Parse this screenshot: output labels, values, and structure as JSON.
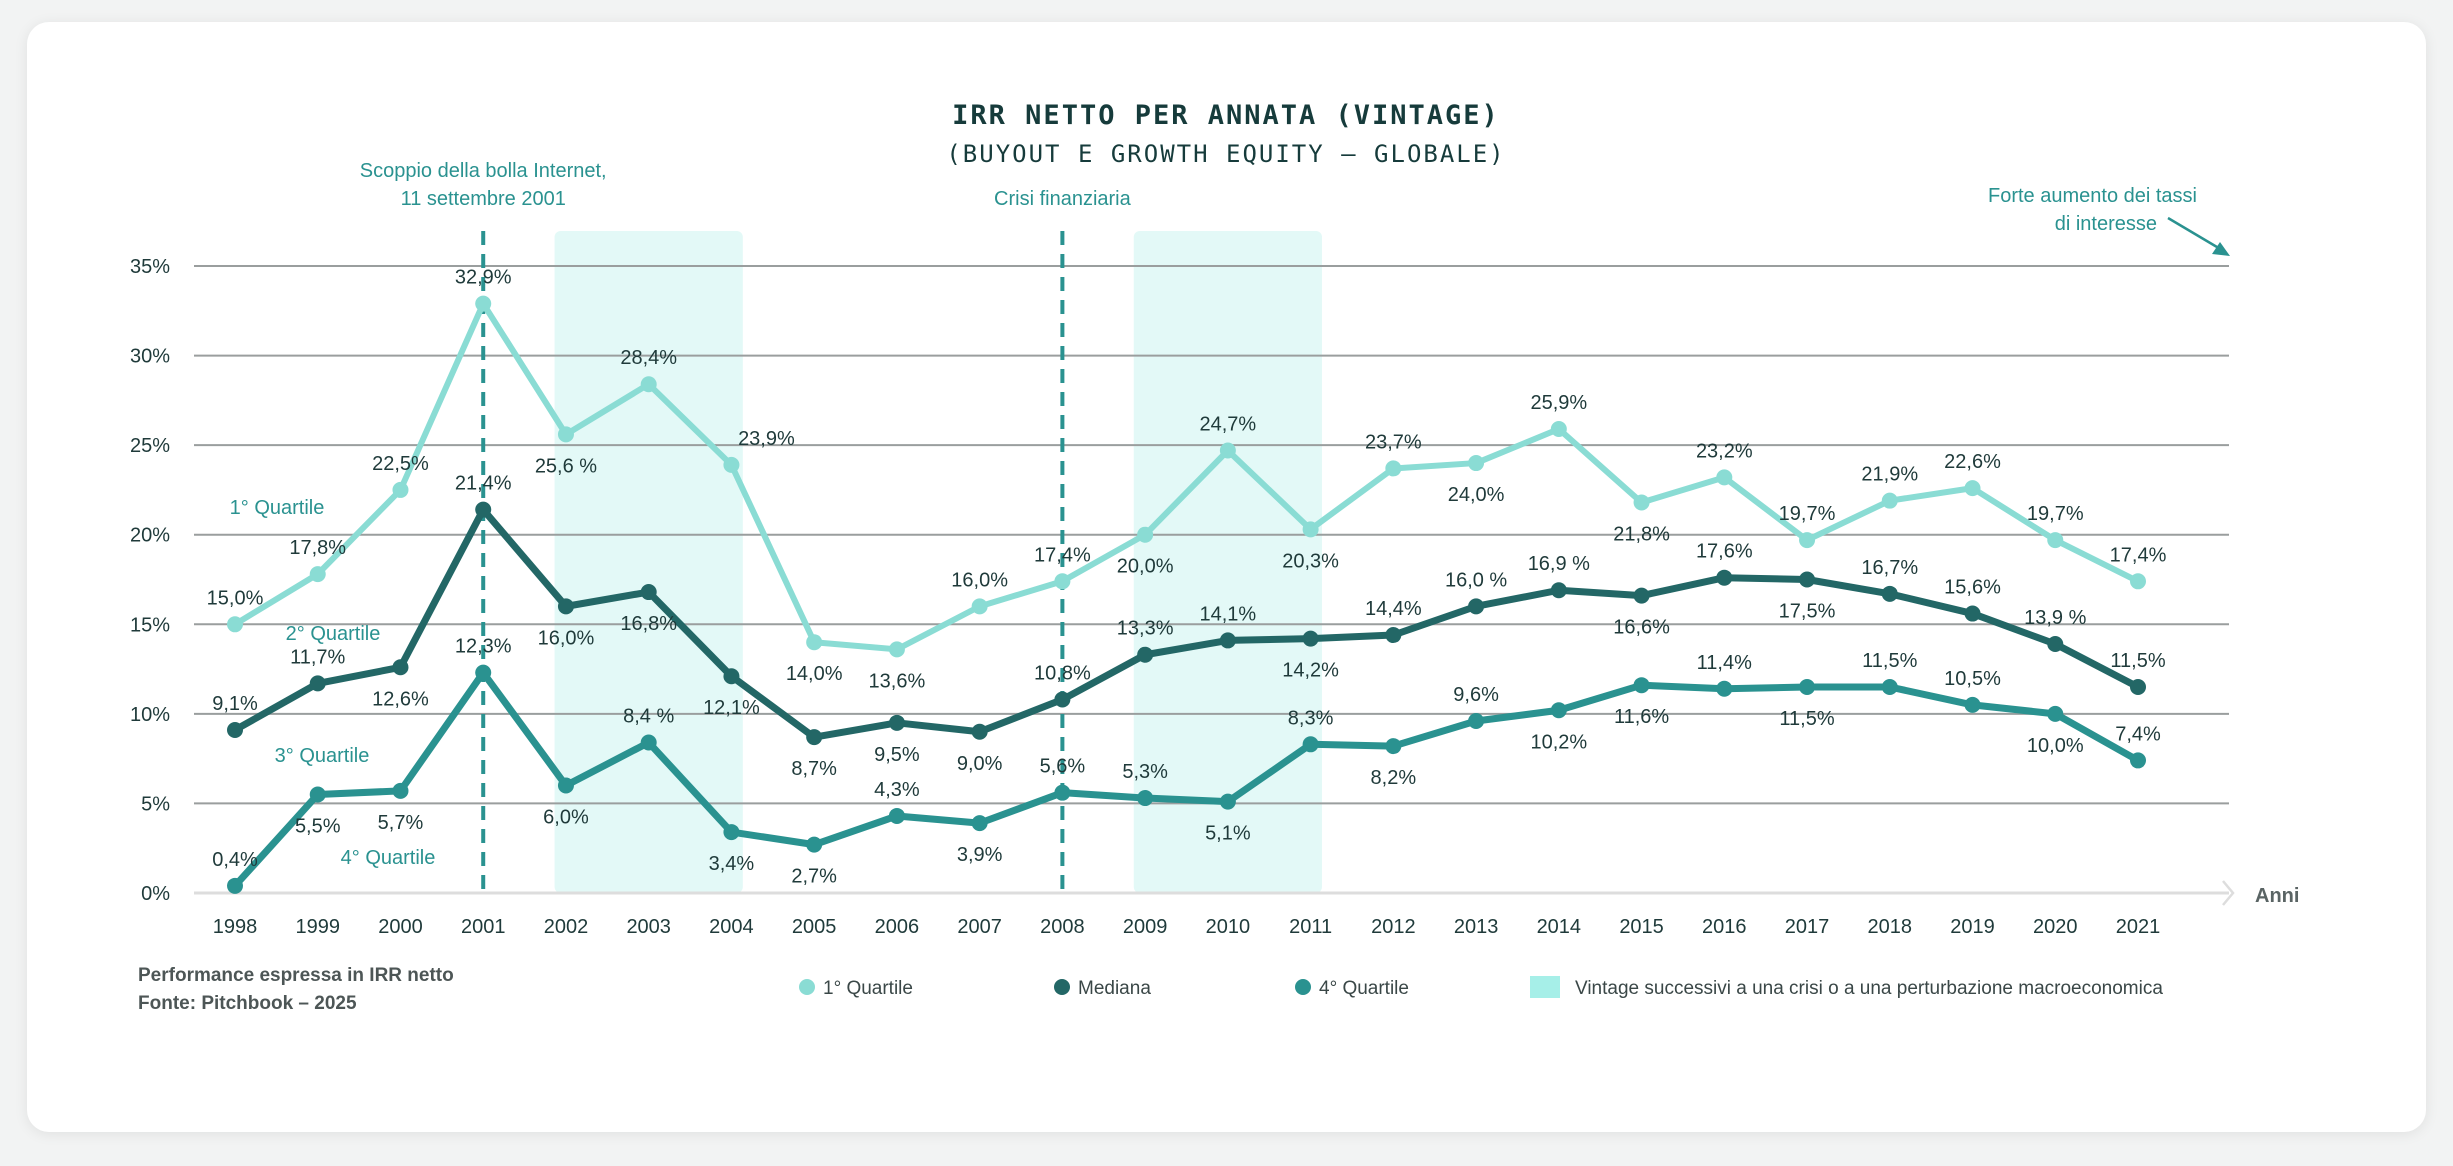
{
  "chart_data": {
    "type": "line",
    "title": "IRR NETTO PER ANNATA (VINTAGE)",
    "subtitle": "(BUYOUT E GROWTH EQUITY – GLOBALE)",
    "xlabel": "Anni",
    "ylabel": "",
    "ylim": [
      0,
      35
    ],
    "yticks": [
      "0%",
      "5%",
      "10%",
      "15%",
      "20%",
      "25%",
      "30%",
      "35%"
    ],
    "ytick_values": [
      0,
      5,
      10,
      15,
      20,
      25,
      30,
      35
    ],
    "grid": true,
    "legend_position": "bottom",
    "categories": [
      "1998",
      "1999",
      "2000",
      "2001",
      "2002",
      "2003",
      "2004",
      "2005",
      "2006",
      "2007",
      "2008",
      "2009",
      "2010",
      "2011",
      "2012",
      "2013",
      "2014",
      "2015",
      "2016",
      "2017",
      "2018",
      "2019",
      "2020",
      "2021"
    ],
    "series": [
      {
        "name": "1° Quartile",
        "color": "#8adcd4",
        "values": [
          15.0,
          17.8,
          22.5,
          32.9,
          25.6,
          28.4,
          23.9,
          14.0,
          13.6,
          16.0,
          17.4,
          20.0,
          24.7,
          20.3,
          23.7,
          24.0,
          25.9,
          21.8,
          23.2,
          19.7,
          21.9,
          22.6,
          19.7,
          17.4
        ],
        "labels": [
          "15,0%",
          "17,8%",
          "22,5%",
          "32,9%",
          "25,6 %",
          "28,4%",
          "23,9%",
          "14,0%",
          "13,6%",
          "16,0%",
          "17,4%",
          "20,0%",
          "24,7%",
          "20,3%",
          "23,7%",
          "24,0%",
          "25,9%",
          "21,8%",
          "23,2%",
          "19,7%",
          "21,9%",
          "22,6%",
          "19,7%",
          "17,4%"
        ]
      },
      {
        "name": "Mediana",
        "color": "#236766",
        "values": [
          9.1,
          11.7,
          12.6,
          21.4,
          16.0,
          16.8,
          12.1,
          8.7,
          9.5,
          9.0,
          10.8,
          13.3,
          14.1,
          14.2,
          14.4,
          16.0,
          16.9,
          16.6,
          17.6,
          17.5,
          16.7,
          15.6,
          13.9,
          11.5
        ],
        "labels": [
          "9,1%",
          "11,7%",
          "12,6%",
          "21,4%",
          "16,0%",
          "16,8%",
          "12,1%",
          "8,7%",
          "9,5%",
          "9,0%",
          "10,8%",
          "13,3%",
          "14,1%",
          "14,2%",
          "14,4%",
          "16,0 %",
          "16,9 %",
          "16,6%",
          "17,6%",
          "17,5%",
          "16,7%",
          "15,6%",
          "13,9 %",
          "11,5%"
        ]
      },
      {
        "name": "4° Quartile",
        "color": "#2a9290",
        "values": [
          0.4,
          5.5,
          5.7,
          12.3,
          6.0,
          8.4,
          3.4,
          2.7,
          4.3,
          3.9,
          5.6,
          5.3,
          5.1,
          8.3,
          8.2,
          9.6,
          10.2,
          11.6,
          11.4,
          11.5,
          11.5,
          10.5,
          10.0,
          7.4
        ],
        "labels": [
          "0,4%",
          "5,5%",
          "5,7%",
          "12,3%",
          "6,0%",
          "8,4 %",
          "3,4%",
          "2,7%",
          "4,3%",
          "3,9%",
          "5,6%",
          "5,3%",
          "5,1%",
          "8,3%",
          "8,2%",
          "9,6%",
          "10,2%",
          "11,6%",
          "11,4%",
          "11,5%",
          "11,5%",
          "10,5%",
          "10,0%",
          "7,4%"
        ]
      }
    ],
    "region_labels": [
      "1° Quartile",
      "2° Quartile",
      "3° Quartile",
      "4° Quartile"
    ],
    "shaded_bands": {
      "label": "Vintage successivi a una crisi o a una perturbazione macroeconomica",
      "color": "#e3f9f7",
      "legend_color": "#a6efe8",
      "ranges": [
        [
          "2002",
          "2004"
        ],
        [
          "2009",
          "2011"
        ]
      ]
    },
    "events": [
      {
        "year": "2001",
        "lines": [
          "Scoppio della bolla Internet,",
          "11 settembre 2001"
        ]
      },
      {
        "year": "2008",
        "lines": [
          "Crisi finanziaria"
        ]
      }
    ],
    "arrow_annotation": [
      "Forte aumento dei tassi",
      "di interesse"
    ],
    "footnote": [
      "Performance espressa in IRR netto",
      "Fonte: Pitchbook – 2025"
    ]
  }
}
